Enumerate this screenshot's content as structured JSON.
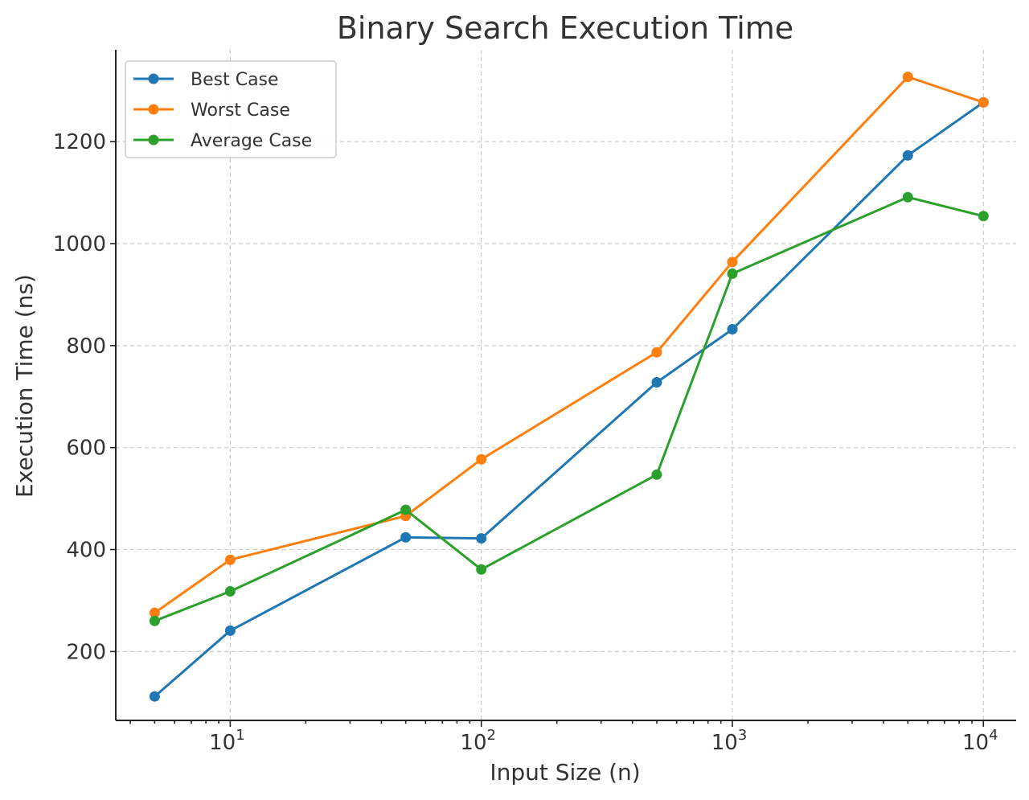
{
  "chart_data": {
    "type": "line",
    "title": "Binary Search Execution Time",
    "xlabel": "Input Size (n)",
    "ylabel": "Execution Time (ns)",
    "xscale": "log",
    "xlim": [
      3.5,
      13500
    ],
    "ylim": [
      65,
      1380
    ],
    "grid": true,
    "legend_position": "top-left",
    "x": [
      5,
      10,
      50,
      100,
      500,
      1000,
      5000,
      10000
    ],
    "x_ticks": [
      {
        "value": 10,
        "base": "10",
        "exp": "1"
      },
      {
        "value": 100,
        "base": "10",
        "exp": "2"
      },
      {
        "value": 1000,
        "base": "10",
        "exp": "3"
      },
      {
        "value": 10000,
        "base": "10",
        "exp": "4"
      }
    ],
    "y_ticks": [
      200,
      400,
      600,
      800,
      1000,
      1200
    ],
    "series": [
      {
        "name": "Best Case",
        "color": "#1f77b4",
        "values": [
          112,
          241,
          424,
          422,
          728,
          832,
          1173,
          1277
        ]
      },
      {
        "name": "Worst Case",
        "color": "#ff7f0e",
        "values": [
          276,
          380,
          466,
          577,
          787,
          964,
          1327,
          1277
        ]
      },
      {
        "name": "Average Case",
        "color": "#2ca02c",
        "values": [
          260,
          318,
          478,
          361,
          547,
          941,
          1091,
          1054
        ]
      }
    ]
  }
}
